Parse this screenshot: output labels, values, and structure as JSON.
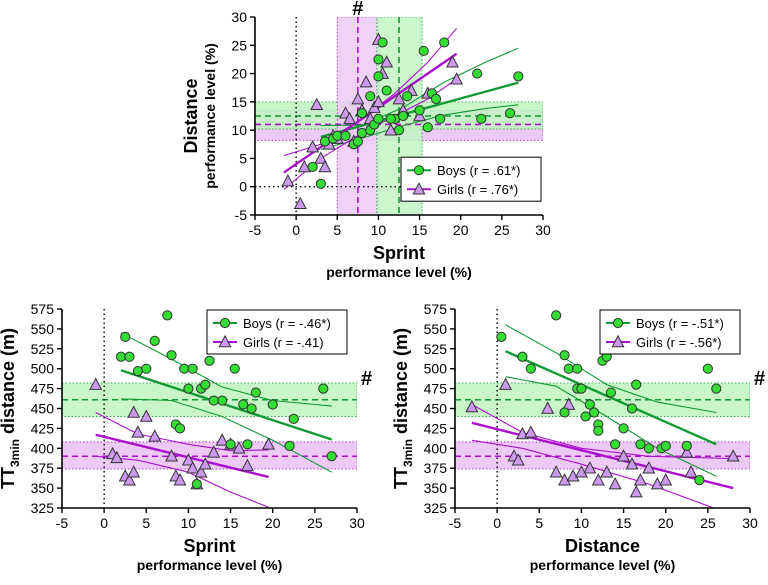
{
  "colors": {
    "boys": "#33dd33",
    "boys_line": "#119933",
    "girls": "#cc99ee",
    "girls_line": "#aa11cc",
    "boys_band": "#bff5bf",
    "girls_band": "#eccaf5"
  },
  "chart_data": [
    {
      "type": "scatter",
      "id": "top",
      "xlabel": "Sprint",
      "xlabel_sub": "performance level (%)",
      "ylabel": "Distance",
      "ylabel_sub": "performance level (%)",
      "xlim": [
        -5,
        30
      ],
      "ylim": [
        -5,
        30
      ],
      "xticks": [
        "-5",
        "0",
        "5",
        "10",
        "15",
        "20",
        "25",
        "30"
      ],
      "yticks": [
        "-5",
        "0",
        "5",
        "10",
        "15",
        "20",
        "25",
        "30"
      ],
      "zero_line": "both",
      "annotation": "#",
      "annotation_position": "top",
      "legend": {
        "position": "bottom-right",
        "boys": "Boys (r = .61*)",
        "girls": "Girls (r = .76*)"
      },
      "boys_points": [
        [
          2,
          3.5
        ],
        [
          3,
          0.5
        ],
        [
          3.5,
          8
        ],
        [
          4.5,
          8.5
        ],
        [
          5,
          9
        ],
        [
          6,
          9
        ],
        [
          7,
          7.5
        ],
        [
          7.5,
          8
        ],
        [
          8,
          9.5
        ],
        [
          9,
          10
        ],
        [
          9.5,
          11
        ],
        [
          10,
          12
        ],
        [
          10,
          19.5
        ],
        [
          10,
          22.5
        ],
        [
          10.5,
          25.5
        ],
        [
          11,
          17
        ],
        [
          12,
          12
        ],
        [
          12.5,
          10
        ],
        [
          13,
          12.5
        ],
        [
          13.5,
          16
        ],
        [
          15,
          13.5
        ],
        [
          15.5,
          24
        ],
        [
          16,
          10.5
        ],
        [
          16.5,
          16.5
        ],
        [
          17,
          15.5
        ],
        [
          17.5,
          12
        ],
        [
          18,
          25.5
        ],
        [
          22,
          20
        ],
        [
          22.5,
          12
        ],
        [
          26,
          13
        ],
        [
          27,
          19.5
        ],
        [
          11.5,
          12
        ],
        [
          8,
          13
        ],
        [
          9,
          16
        ]
      ],
      "girls_points": [
        [
          -1,
          1
        ],
        [
          0.5,
          -3
        ],
        [
          1,
          3.5
        ],
        [
          2,
          7
        ],
        [
          2.5,
          14.5
        ],
        [
          3,
          5
        ],
        [
          3.5,
          3.5
        ],
        [
          4,
          7.5
        ],
        [
          4.5,
          9
        ],
        [
          5,
          8.5
        ],
        [
          6,
          13
        ],
        [
          7,
          8
        ],
        [
          8,
          13.5
        ],
        [
          8.5,
          18.5
        ],
        [
          9,
          12
        ],
        [
          9.5,
          14
        ],
        [
          10,
          26
        ],
        [
          10.5,
          20
        ],
        [
          11,
          22
        ],
        [
          11.5,
          10
        ],
        [
          12.5,
          15.5
        ],
        [
          13,
          13.5
        ],
        [
          14,
          17
        ],
        [
          15,
          12.5
        ],
        [
          16,
          16.5
        ],
        [
          19,
          22
        ],
        [
          19.5,
          19
        ],
        [
          10,
          15
        ],
        [
          7.5,
          15.5
        ],
        [
          6.5,
          12
        ]
      ],
      "boys_fit": {
        "x": [
          3,
          27
        ],
        "y": [
          8.8,
          18.4
        ]
      },
      "boys_ci_upper": [
        [
          3,
          10.8
        ],
        [
          8,
          10.9
        ],
        [
          13,
          14.0
        ],
        [
          18,
          18.5
        ],
        [
          23,
          22.0
        ],
        [
          27,
          24.5
        ]
      ],
      "boys_ci_lower": [
        [
          3,
          6.6
        ],
        [
          8,
          8.6
        ],
        [
          13,
          10.8
        ],
        [
          18,
          12.7
        ],
        [
          23,
          13.8
        ],
        [
          27,
          14.5
        ]
      ],
      "girls_fit": {
        "x": [
          -1.5,
          19.5
        ],
        "y": [
          2.5,
          23.5
        ]
      },
      "girls_ci_upper": [
        [
          -1.5,
          5.5
        ],
        [
          3,
          7.5
        ],
        [
          8,
          12
        ],
        [
          12,
          16.5
        ],
        [
          16,
          22
        ],
        [
          19.5,
          28
        ]
      ],
      "girls_ci_lower": [
        [
          -1.5,
          -0.5
        ],
        [
          3,
          5
        ],
        [
          8,
          9.5
        ],
        [
          12,
          12.5
        ],
        [
          16,
          15.5
        ],
        [
          19.5,
          19
        ]
      ],
      "boys_hline": {
        "mean": 12.5,
        "band": [
          10.2,
          15.0
        ]
      },
      "girls_hline": {
        "mean": 11.0,
        "band": [
          8.2,
          13.5
        ]
      },
      "boys_vline": {
        "mean": 12.5,
        "band": [
          9.8,
          15.3
        ]
      },
      "girls_vline": {
        "mean": 7.5,
        "band": [
          5.0,
          10.0
        ]
      }
    },
    {
      "type": "scatter",
      "id": "bottom-left",
      "xlabel": "Sprint",
      "xlabel_sub": "performance level (%)",
      "ylabel_pre": "TT",
      "ylabel_sub_script": "3min",
      "ylabel_post": " distance (m)",
      "xlim": [
        -5,
        30
      ],
      "ylim": [
        325,
        575
      ],
      "xticks": [
        "-5",
        "0",
        "5",
        "10",
        "15",
        "20",
        "25",
        "30"
      ],
      "yticks": [
        "325",
        "350",
        "375",
        "400",
        "425",
        "450",
        "475",
        "500",
        "525",
        "550",
        "575"
      ],
      "zero_line": "x",
      "annotation": "#",
      "annotation_position": "right",
      "legend": {
        "position": "top-right",
        "boys": "Boys (r = -.46*)",
        "girls": "Girls (r = -.41)"
      },
      "boys_points": [
        [
          2,
          515
        ],
        [
          2.5,
          540
        ],
        [
          3,
          515
        ],
        [
          4,
          497
        ],
        [
          5,
          500
        ],
        [
          6,
          535
        ],
        [
          7.5,
          567
        ],
        [
          8,
          517
        ],
        [
          8.5,
          430
        ],
        [
          9,
          425
        ],
        [
          9.5,
          500
        ],
        [
          10,
          475
        ],
        [
          10.5,
          500
        ],
        [
          11,
          355
        ],
        [
          11.5,
          475
        ],
        [
          12,
          480
        ],
        [
          12.5,
          510
        ],
        [
          14,
          460
        ],
        [
          15,
          405
        ],
        [
          15.5,
          500
        ],
        [
          16.5,
          455
        ],
        [
          17,
          405
        ],
        [
          17.5,
          450
        ],
        [
          18,
          470
        ],
        [
          20,
          455
        ],
        [
          22,
          403
        ],
        [
          22.5,
          437
        ],
        [
          26,
          475
        ],
        [
          27,
          390
        ],
        [
          13,
          460
        ]
      ],
      "girls_points": [
        [
          -1,
          480
        ],
        [
          1,
          393
        ],
        [
          1.5,
          388
        ],
        [
          2.5,
          365
        ],
        [
          3,
          360
        ],
        [
          3.5,
          445
        ],
        [
          4,
          420
        ],
        [
          5,
          440
        ],
        [
          6,
          415
        ],
        [
          8,
          390
        ],
        [
          8.5,
          365
        ],
        [
          9,
          360
        ],
        [
          10,
          385
        ],
        [
          10.5,
          375
        ],
        [
          11,
          355
        ],
        [
          11.5,
          370
        ],
        [
          12,
          380
        ],
        [
          13,
          395
        ],
        [
          14,
          410
        ],
        [
          15,
          405
        ],
        [
          16,
          400
        ],
        [
          17,
          378
        ],
        [
          19.5,
          405
        ],
        [
          3.5,
          370
        ]
      ],
      "boys_fit": {
        "x": [
          2,
          27
        ],
        "y": [
          498,
          411
        ]
      },
      "boys_ci_upper": [
        [
          2,
          545
        ],
        [
          8,
          512
        ],
        [
          14,
          477
        ],
        [
          20,
          460
        ],
        [
          27,
          453
        ]
      ],
      "boys_ci_lower": [
        [
          2,
          462
        ],
        [
          8,
          460
        ],
        [
          14,
          440
        ],
        [
          20,
          410
        ],
        [
          27,
          370
        ]
      ],
      "girls_fit": {
        "x": [
          -1,
          19.5
        ],
        "y": [
          417,
          364
        ]
      },
      "girls_ci_upper": [
        [
          -1,
          445
        ],
        [
          4,
          418
        ],
        [
          10,
          405
        ],
        [
          15,
          397
        ],
        [
          19.5,
          398
        ]
      ],
      "girls_ci_lower": [
        [
          -1,
          390
        ],
        [
          4,
          385
        ],
        [
          10,
          370
        ],
        [
          15,
          345
        ],
        [
          19.5,
          326
        ]
      ],
      "boys_hline": {
        "mean": 461,
        "band": [
          440,
          482
        ]
      },
      "girls_hline": {
        "mean": 390,
        "band": [
          374,
          408
        ]
      }
    },
    {
      "type": "scatter",
      "id": "bottom-right",
      "xlabel": "Distance",
      "xlabel_sub": "performance level (%)",
      "ylabel_pre": "TT",
      "ylabel_sub_script": "3min",
      "ylabel_post": " distance (m)",
      "xlim": [
        -5,
        30
      ],
      "ylim": [
        325,
        575
      ],
      "xticks": [
        "-5",
        "0",
        "5",
        "10",
        "15",
        "20",
        "25",
        "30"
      ],
      "yticks": [
        "325",
        "350",
        "375",
        "400",
        "425",
        "450",
        "475",
        "500",
        "525",
        "550",
        "575"
      ],
      "zero_line": "x",
      "annotation": "#",
      "annotation_position": "right",
      "legend": {
        "position": "top-right",
        "boys": "Boys (r = -.51*)",
        "girls": "Girls (r = -.56*)"
      },
      "boys_points": [
        [
          0.5,
          540
        ],
        [
          3,
          515
        ],
        [
          4,
          500
        ],
        [
          7,
          567
        ],
        [
          8,
          517
        ],
        [
          8.5,
          500
        ],
        [
          9.5,
          475
        ],
        [
          9.5,
          500
        ],
        [
          10,
          475
        ],
        [
          10.5,
          440
        ],
        [
          11,
          455
        ],
        [
          11.5,
          445
        ],
        [
          12,
          430
        ],
        [
          12.5,
          510
        ],
        [
          13,
          515
        ],
        [
          13.5,
          470
        ],
        [
          14,
          405
        ],
        [
          15,
          425
        ],
        [
          16,
          450
        ],
        [
          16.5,
          480
        ],
        [
          17,
          405
        ],
        [
          18,
          400
        ],
        [
          19.5,
          400
        ],
        [
          20,
          403
        ],
        [
          22.5,
          403
        ],
        [
          24,
          360
        ],
        [
          25,
          500
        ],
        [
          26,
          475
        ],
        [
          12,
          422
        ],
        [
          8,
          445
        ]
      ],
      "girls_points": [
        [
          -3,
          452
        ],
        [
          1,
          480
        ],
        [
          2,
          390
        ],
        [
          2.5,
          385
        ],
        [
          3,
          418
        ],
        [
          4,
          420
        ],
        [
          6,
          450
        ],
        [
          7,
          370
        ],
        [
          8,
          360
        ],
        [
          9,
          365
        ],
        [
          10,
          370
        ],
        [
          11,
          375
        ],
        [
          12,
          360
        ],
        [
          13,
          370
        ],
        [
          14,
          355
        ],
        [
          15,
          390
        ],
        [
          16,
          380
        ],
        [
          16.5,
          345
        ],
        [
          17,
          360
        ],
        [
          18,
          375
        ],
        [
          19,
          355
        ],
        [
          20,
          360
        ],
        [
          22.5,
          395
        ],
        [
          23,
          370
        ],
        [
          28,
          390
        ],
        [
          8.5,
          455
        ]
      ],
      "boys_fit": {
        "x": [
          1,
          26
        ],
        "y": [
          522,
          405
        ]
      },
      "boys_ci_upper": [
        [
          1,
          555
        ],
        [
          7,
          520
        ],
        [
          13,
          480
        ],
        [
          19,
          458
        ],
        [
          26,
          445
        ]
      ],
      "boys_ci_lower": [
        [
          1,
          490
        ],
        [
          7,
          478
        ],
        [
          13,
          440
        ],
        [
          19,
          400
        ],
        [
          26,
          365
        ]
      ],
      "girls_fit": {
        "x": [
          -3,
          28
        ],
        "y": [
          432,
          350
        ]
      },
      "girls_ci_upper": [
        [
          -3,
          455
        ],
        [
          3,
          420
        ],
        [
          10,
          400
        ],
        [
          18,
          390
        ],
        [
          28,
          387
        ]
      ],
      "girls_ci_lower": [
        [
          -3,
          410
        ],
        [
          3,
          400
        ],
        [
          10,
          380
        ],
        [
          18,
          355
        ],
        [
          28,
          316
        ]
      ],
      "boys_hline": {
        "mean": 461,
        "band": [
          440,
          482
        ]
      },
      "girls_hline": {
        "mean": 390,
        "band": [
          374,
          408
        ]
      }
    }
  ]
}
